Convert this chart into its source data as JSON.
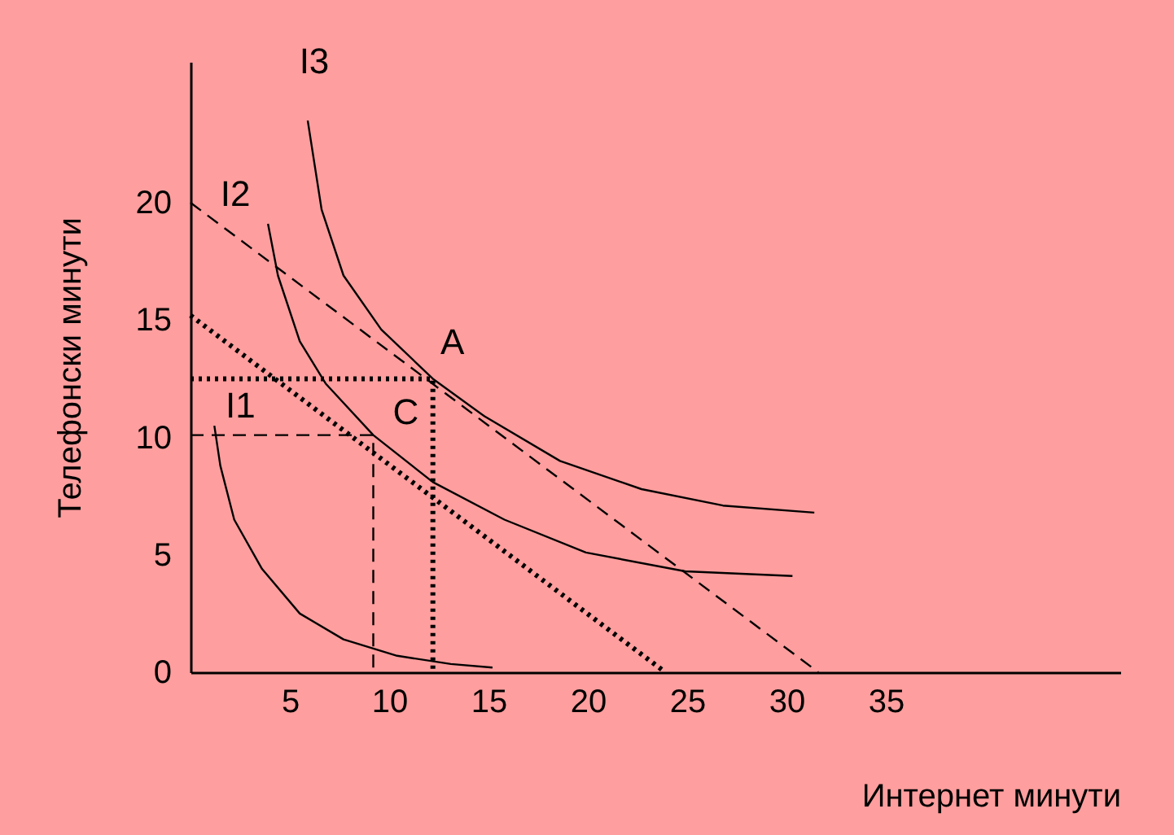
{
  "chart_data": {
    "type": "line",
    "xlabel": "Интернет минути",
    "ylabel": "Телефонски минути",
    "xlim": [
      0,
      46.8
    ],
    "ylim": [
      0,
      26
    ],
    "xticks": [
      5,
      10,
      15,
      20,
      25,
      30,
      35
    ],
    "yticks": [
      0,
      5,
      10,
      15,
      20
    ],
    "grid": false,
    "series": [
      {
        "name": "I1",
        "color": "#000000",
        "line_style": "solid",
        "x": [
          1.2,
          1.5,
          2.2,
          3.6,
          5.5,
          7.7,
          10.4,
          13.1,
          15.2
        ],
        "values": [
          10.5,
          8.8,
          6.5,
          4.4,
          2.5,
          1.4,
          0.7,
          0.35,
          0.2
        ]
      },
      {
        "name": "I2",
        "color": "#000000",
        "line_style": "solid",
        "x": [
          3.9,
          4.4,
          5.5,
          6.8,
          9.2,
          12.2,
          15.8,
          19.9,
          24.9,
          30.3
        ],
        "values": [
          19.1,
          16.9,
          14.1,
          12.3,
          10.1,
          8.1,
          6.5,
          5.1,
          4.3,
          4.1
        ]
      },
      {
        "name": "I3",
        "color": "#000000",
        "line_style": "solid",
        "x": [
          5.9,
          6.6,
          7.7,
          9.6,
          12.2,
          14.8,
          18.6,
          22.7,
          26.8,
          31.4
        ],
        "values": [
          23.5,
          19.7,
          16.9,
          14.6,
          12.5,
          10.9,
          9.0,
          7.8,
          7.1,
          6.8
        ]
      },
      {
        "color": "#000000",
        "line_style": "dashed",
        "x": [
          0,
          31.6
        ],
        "values": [
          20,
          0
        ]
      },
      {
        "color": "#000000",
        "line_style": "dotted",
        "x": [
          0,
          23.9
        ],
        "values": [
          15.2,
          0
        ]
      },
      {
        "color": "#000000",
        "line_style": "dotted",
        "x": [
          0,
          12.2,
          12.2
        ],
        "values": [
          12.5,
          12.5,
          0
        ]
      },
      {
        "color": "#000000",
        "line_style": "dashed",
        "x": [
          0,
          9.2,
          9.2
        ],
        "values": [
          10.1,
          10.1,
          0
        ]
      }
    ],
    "annotations": [
      {
        "text": "A",
        "x": 12.2,
        "y": 12.5
      },
      {
        "text": "C",
        "x": 9.2,
        "y": 10.1
      }
    ]
  }
}
